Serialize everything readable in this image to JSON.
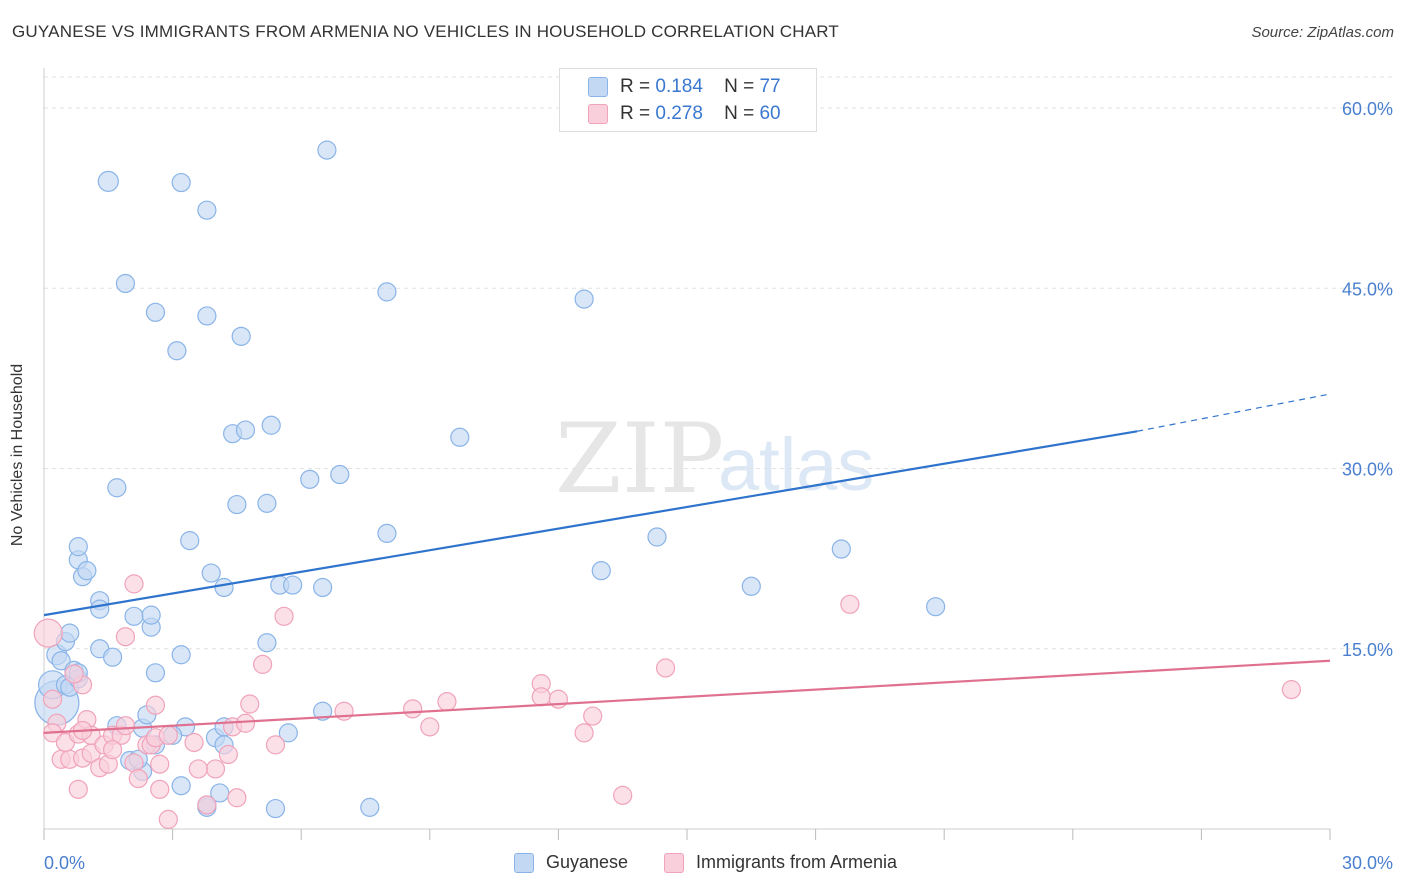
{
  "title": "GUYANESE VS IMMIGRANTS FROM ARMENIA NO VEHICLES IN HOUSEHOLD CORRELATION CHART",
  "source": "Source: ZipAtlas.com",
  "watermark": {
    "zip": "ZIP",
    "atlas": "atlas"
  },
  "legend": {
    "r_label": "R =",
    "n_label": "N =",
    "rows": [
      {
        "r": "0.184",
        "n": "77"
      },
      {
        "r": "0.278",
        "n": "60"
      }
    ]
  },
  "chart_data": {
    "type": "scatter",
    "title": "GUYANESE VS IMMIGRANTS FROM ARMENIA NO VEHICLES IN HOUSEHOLD CORRELATION CHART",
    "xlabel": "",
    "ylabel": "No Vehicles in Household",
    "xlim": [
      0,
      30
    ],
    "ylim": [
      0,
      63
    ],
    "x_tick_labels": [
      "0.0%",
      "30.0%"
    ],
    "y_ticks": [
      15,
      30,
      45,
      60
    ],
    "y_tick_labels": [
      "15.0%",
      "30.0%",
      "45.0%",
      "60.0%"
    ],
    "grid": true,
    "legend_position": "top-center",
    "series": [
      {
        "name": "Guyanese",
        "color": "#8ab4e8",
        "fill": "#c3d8f3",
        "trend_color": "#2f74cc",
        "trend": {
          "x0": 0,
          "y0": 17.8,
          "x1": 25.5,
          "y1": 33.1,
          "dash_to_x": 30,
          "dash_to_y": 36.2
        },
        "points": [
          [
            0.3,
            10.5,
            22
          ],
          [
            0.2,
            12.0,
            14
          ],
          [
            0.3,
            14.5,
            10
          ],
          [
            0.4,
            14.0,
            9
          ],
          [
            0.5,
            12.0,
            9
          ],
          [
            0.6,
            11.8,
            9
          ],
          [
            0.5,
            15.6,
            9
          ],
          [
            0.7,
            13.2,
            9
          ],
          [
            0.8,
            12.5,
            9
          ],
          [
            0.8,
            13.0,
            9
          ],
          [
            0.6,
            16.3,
            9
          ],
          [
            0.9,
            21.0,
            9
          ],
          [
            0.8,
            22.4,
            9
          ],
          [
            0.8,
            23.5,
            9
          ],
          [
            1.0,
            21.5,
            9
          ],
          [
            1.3,
            19.0,
            9
          ],
          [
            1.3,
            18.3,
            9
          ],
          [
            1.3,
            15.0,
            9
          ],
          [
            1.6,
            14.3,
            9
          ],
          [
            2.1,
            17.7,
            9
          ],
          [
            2.5,
            16.8,
            9
          ],
          [
            2.5,
            17.8,
            9
          ],
          [
            2.6,
            13.0,
            9
          ],
          [
            3.2,
            14.5,
            9
          ],
          [
            3.4,
            24.0,
            9
          ],
          [
            3.9,
            21.3,
            9
          ],
          [
            4.2,
            20.1,
            9
          ],
          [
            5.2,
            15.5,
            9
          ],
          [
            5.5,
            20.3,
            9
          ],
          [
            5.8,
            20.3,
            9
          ],
          [
            6.5,
            20.1,
            9
          ],
          [
            1.7,
            28.4,
            9
          ],
          [
            4.5,
            27.0,
            9
          ],
          [
            5.2,
            27.1,
            9
          ],
          [
            6.2,
            29.1,
            9
          ],
          [
            6.9,
            29.5,
            9
          ],
          [
            4.4,
            32.9,
            9
          ],
          [
            4.7,
            33.2,
            9
          ],
          [
            5.3,
            33.6,
            9
          ],
          [
            3.1,
            39.8,
            9
          ],
          [
            3.8,
            42.7,
            9
          ],
          [
            4.6,
            41.0,
            9
          ],
          [
            2.6,
            43.0,
            9
          ],
          [
            1.9,
            45.4,
            9
          ],
          [
            8.0,
            44.7,
            9
          ],
          [
            12.6,
            44.1,
            9
          ],
          [
            1.5,
            53.9,
            10
          ],
          [
            3.2,
            53.8,
            9
          ],
          [
            3.8,
            51.5,
            9
          ],
          [
            6.6,
            56.5,
            9
          ],
          [
            9.7,
            32.6,
            9
          ],
          [
            8.0,
            24.6,
            9
          ],
          [
            13.0,
            21.5,
            9
          ],
          [
            14.3,
            24.3,
            9
          ],
          [
            16.5,
            20.2,
            9
          ],
          [
            18.6,
            23.3,
            9
          ],
          [
            20.8,
            18.5,
            9
          ],
          [
            1.7,
            8.6,
            9
          ],
          [
            2.3,
            8.4,
            9
          ],
          [
            2.4,
            9.5,
            9
          ],
          [
            2.6,
            7.0,
            9
          ],
          [
            2.0,
            5.7,
            9
          ],
          [
            2.3,
            4.8,
            9
          ],
          [
            3.3,
            8.5,
            9
          ],
          [
            3.0,
            7.8,
            9
          ],
          [
            4.0,
            7.6,
            9
          ],
          [
            4.2,
            8.5,
            9
          ],
          [
            4.2,
            7.0,
            9
          ],
          [
            5.7,
            8.0,
            9
          ],
          [
            6.5,
            9.8,
            9
          ],
          [
            3.2,
            3.6,
            9
          ],
          [
            3.8,
            1.8,
            9
          ],
          [
            3.8,
            2.0,
            9
          ],
          [
            4.1,
            3.0,
            9
          ],
          [
            5.4,
            1.7,
            9
          ],
          [
            7.6,
            1.8,
            9
          ],
          [
            2.2,
            5.8,
            9
          ]
        ]
      },
      {
        "name": "Immigrants from Armenia",
        "color": "#f0a3ba",
        "fill": "#f9cfdb",
        "trend_color": "#e0708f",
        "trend": {
          "x0": 0,
          "y0": 8.0,
          "x1": 30,
          "y1": 14.0
        },
        "points": [
          [
            0.1,
            16.3,
            14
          ],
          [
            0.2,
            10.8,
            9
          ],
          [
            0.3,
            8.8,
            9
          ],
          [
            0.2,
            8.0,
            9
          ],
          [
            0.4,
            5.8,
            9
          ],
          [
            0.6,
            5.8,
            9
          ],
          [
            0.5,
            7.2,
            9
          ],
          [
            0.8,
            7.9,
            9
          ],
          [
            0.9,
            12.0,
            9
          ],
          [
            1.0,
            9.1,
            9
          ],
          [
            1.1,
            7.8,
            9
          ],
          [
            0.7,
            12.9,
            9
          ],
          [
            0.9,
            8.2,
            9
          ],
          [
            0.8,
            3.3,
            9
          ],
          [
            0.9,
            5.9,
            9
          ],
          [
            1.1,
            6.3,
            9
          ],
          [
            1.3,
            5.1,
            9
          ],
          [
            1.4,
            7.0,
            9
          ],
          [
            1.5,
            5.4,
            9
          ],
          [
            1.6,
            7.8,
            9
          ],
          [
            1.8,
            7.8,
            9
          ],
          [
            1.9,
            8.6,
            9
          ],
          [
            1.9,
            16.0,
            9
          ],
          [
            2.1,
            5.5,
            9
          ],
          [
            2.2,
            4.2,
            9
          ],
          [
            2.1,
            20.4,
            9
          ],
          [
            2.4,
            7.0,
            9
          ],
          [
            2.5,
            7.0,
            9
          ],
          [
            2.6,
            7.6,
            9
          ],
          [
            2.6,
            10.3,
            9
          ],
          [
            2.7,
            3.3,
            9
          ],
          [
            2.9,
            0.8,
            9
          ],
          [
            2.9,
            7.8,
            9
          ],
          [
            3.8,
            2.0,
            9
          ],
          [
            4.0,
            5.0,
            9
          ],
          [
            4.3,
            6.2,
            9
          ],
          [
            4.4,
            8.5,
            9
          ],
          [
            4.5,
            2.6,
            9
          ],
          [
            4.7,
            8.8,
            9
          ],
          [
            4.8,
            10.4,
            9
          ],
          [
            5.1,
            13.7,
            9
          ],
          [
            5.4,
            7.0,
            9
          ],
          [
            5.6,
            17.7,
            9
          ],
          [
            7.0,
            9.8,
            9
          ],
          [
            8.6,
            10.0,
            9
          ],
          [
            9.0,
            8.5,
            9
          ],
          [
            9.4,
            10.6,
            9
          ],
          [
            11.6,
            12.1,
            9
          ],
          [
            11.6,
            11.0,
            9
          ],
          [
            12.0,
            10.8,
            9
          ],
          [
            12.6,
            8.0,
            9
          ],
          [
            12.8,
            9.4,
            9
          ],
          [
            13.5,
            2.8,
            9
          ],
          [
            14.5,
            13.4,
            9
          ],
          [
            18.8,
            18.7,
            9
          ],
          [
            29.1,
            11.6,
            9
          ],
          [
            1.6,
            6.6,
            9
          ],
          [
            2.7,
            5.4,
            9
          ],
          [
            3.5,
            7.2,
            9
          ],
          [
            3.6,
            5.0,
            9
          ]
        ]
      }
    ]
  }
}
